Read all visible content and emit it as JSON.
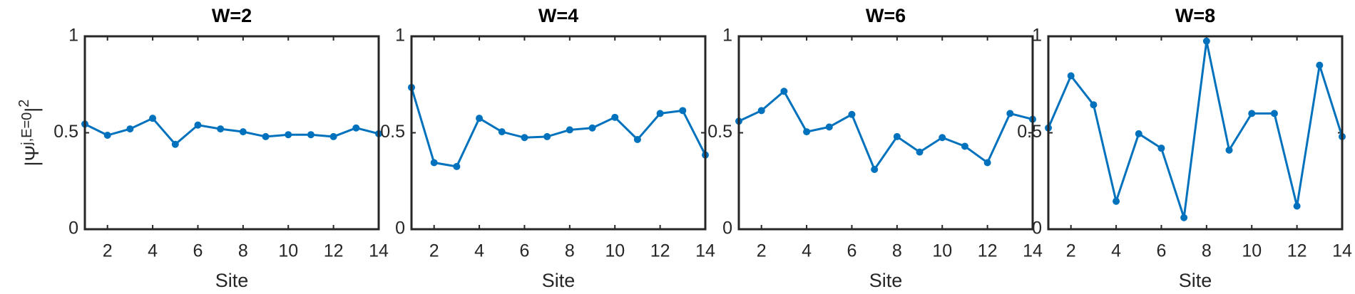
{
  "chart_data": [
    {
      "type": "line",
      "title": "W=2",
      "xlabel": "Site",
      "ylabel": [
        "|Ψ",
        "j,E=0",
        "|",
        "2"
      ],
      "x": [
        1,
        2,
        3,
        4,
        5,
        6,
        7,
        8,
        9,
        10,
        11,
        12,
        13,
        14
      ],
      "series": [
        {
          "color": "#0072bd",
          "values": [
            0.545,
            0.487,
            0.52,
            0.575,
            0.44,
            0.54,
            0.52,
            0.505,
            0.48,
            0.49,
            0.49,
            0.48,
            0.525,
            0.495
          ]
        }
      ],
      "xlim": [
        1,
        14
      ],
      "xticks": [
        2,
        4,
        6,
        8,
        10,
        12,
        14
      ],
      "ylim": [
        0,
        1
      ],
      "yticks": [
        0,
        0.5,
        1
      ]
    },
    {
      "type": "line",
      "title": "W=4",
      "xlabel": "Site",
      "x": [
        1,
        2,
        3,
        4,
        5,
        6,
        7,
        8,
        9,
        10,
        11,
        12,
        13,
        14
      ],
      "series": [
        {
          "color": "#0072bd",
          "values": [
            0.735,
            0.345,
            0.325,
            0.575,
            0.505,
            0.475,
            0.48,
            0.515,
            0.525,
            0.58,
            0.465,
            0.6,
            0.615,
            0.385
          ]
        }
      ],
      "xlim": [
        1,
        14
      ],
      "xticks": [
        2,
        4,
        6,
        8,
        10,
        12,
        14
      ],
      "ylim": [
        0,
        1
      ],
      "yticks": [
        0,
        0.5,
        1
      ]
    },
    {
      "type": "line",
      "title": "W=6",
      "xlabel": "Site",
      "x": [
        1,
        2,
        3,
        4,
        5,
        6,
        7,
        8,
        9,
        10,
        11,
        12,
        13,
        14
      ],
      "series": [
        {
          "color": "#0072bd",
          "values": [
            0.56,
            0.615,
            0.715,
            0.505,
            0.53,
            0.595,
            0.31,
            0.48,
            0.4,
            0.475,
            0.43,
            0.345,
            0.6,
            0.57
          ]
        }
      ],
      "xlim": [
        1,
        14
      ],
      "xticks": [
        2,
        4,
        6,
        8,
        10,
        12,
        14
      ],
      "ylim": [
        0,
        1
      ],
      "yticks": [
        0,
        0.5,
        1
      ]
    },
    {
      "type": "line",
      "title": "W=8",
      "xlabel": "Site",
      "x": [
        1,
        2,
        3,
        4,
        5,
        6,
        7,
        8,
        9,
        10,
        11,
        12,
        13,
        14
      ],
      "series": [
        {
          "color": "#0072bd",
          "values": [
            0.525,
            0.795,
            0.645,
            0.145,
            0.495,
            0.42,
            0.06,
            0.975,
            0.41,
            0.6,
            0.6,
            0.12,
            0.85,
            0.48
          ]
        }
      ],
      "xlim": [
        1,
        14
      ],
      "xticks": [
        2,
        4,
        6,
        8,
        10,
        12,
        14
      ],
      "ylim": [
        0,
        1
      ],
      "yticks": [
        0,
        0.5,
        1
      ]
    }
  ]
}
